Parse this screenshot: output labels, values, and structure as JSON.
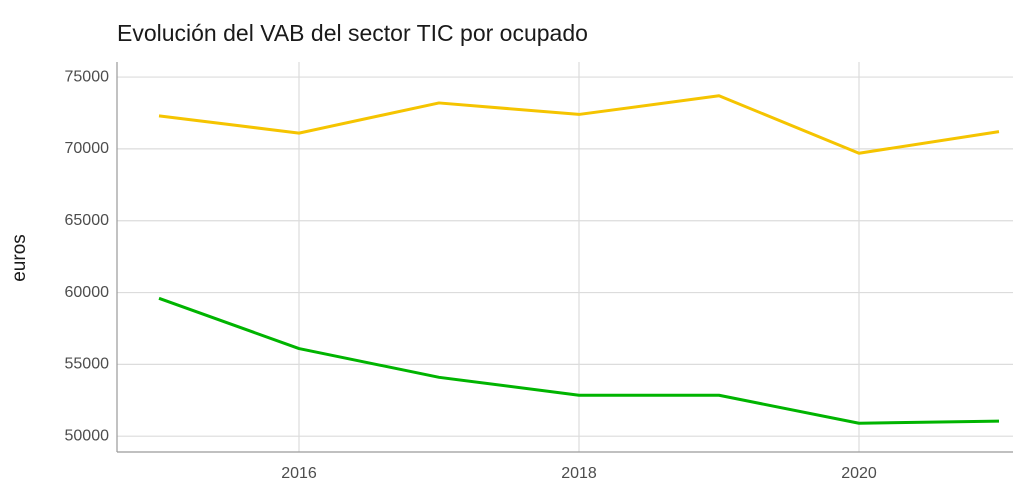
{
  "chart_data": {
    "type": "line",
    "title": "Evolución del VAB del sector TIC por ocupado",
    "ylabel": "euros",
    "x": [
      2015,
      2016,
      2017,
      2018,
      2019,
      2020,
      2021
    ],
    "series": [
      {
        "color": "#f5c400",
        "values": [
          72300,
          71100,
          73200,
          72400,
          73700,
          69700,
          71200
        ]
      },
      {
        "color": "#00b400",
        "values": [
          59600,
          56100,
          54100,
          52850,
          52850,
          50900,
          51050
        ]
      }
    ],
    "xlim": [
      2014.7,
      2021.1
    ],
    "xticks": [
      2016,
      2018,
      2020
    ],
    "ylim": [
      48900,
      76050
    ],
    "yticks": [
      50000,
      55000,
      60000,
      65000,
      70000,
      75000
    ],
    "grid": true
  }
}
